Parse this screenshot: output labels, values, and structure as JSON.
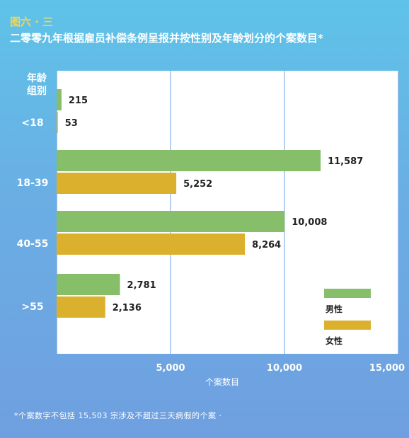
{
  "figure_label": "图六 · 三",
  "title": "二零零九年根据雇员补偿条例呈报并按性别及年龄划分的个案数目*",
  "group_header_line1": "年龄",
  "group_header_line2": "组别",
  "footnote": "*个案数字不包括 15,503 宗涉及不超过三天病假的个案 ·",
  "colors": {
    "male": "#86be6a",
    "female": "#dbb02c"
  },
  "chart_data": {
    "type": "bar",
    "orientation": "horizontal",
    "categories": [
      "<18",
      "18-39",
      "40-55",
      ">55"
    ],
    "series": [
      {
        "name": "男性",
        "values": [
          215,
          11587,
          10008,
          2781
        ]
      },
      {
        "name": "女性",
        "values": [
          53,
          5252,
          8264,
          2136
        ]
      }
    ],
    "value_labels": [
      [
        "215",
        "11,587",
        "10,008",
        "2,781"
      ],
      [
        "53",
        "5,252",
        "8,264",
        "2,136"
      ]
    ],
    "xlabel": "个案数目",
    "xlim": [
      0,
      15000
    ],
    "xticks": [
      5000,
      10000,
      15000
    ],
    "xtick_labels": [
      "5,000",
      "10,000",
      "15,000"
    ],
    "grid": true,
    "legend_position": "right"
  }
}
